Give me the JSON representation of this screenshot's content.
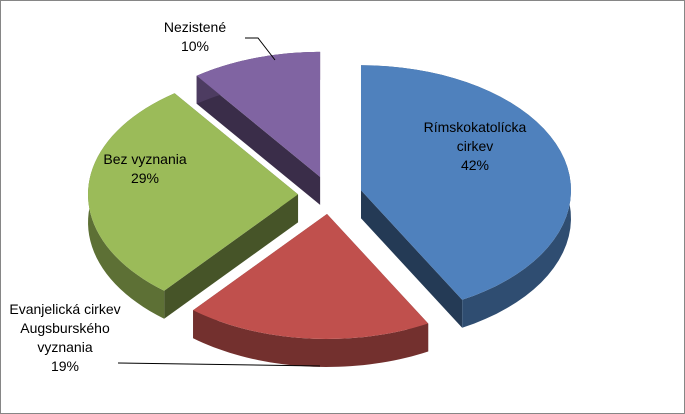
{
  "chart_data": {
    "type": "pie3d",
    "categories": [
      "Rímskokatolícka cirkev",
      "Evanjelická cirkev Augsburského vyznania",
      "Bez vyznania",
      "Nezistené"
    ],
    "values": [
      42,
      19,
      29,
      10
    ],
    "value_labels": [
      "42%",
      "19%",
      "29%",
      "10%"
    ],
    "colors": [
      "#4f81bd",
      "#c0504d",
      "#9bbb59",
      "#8064a2"
    ]
  }
}
